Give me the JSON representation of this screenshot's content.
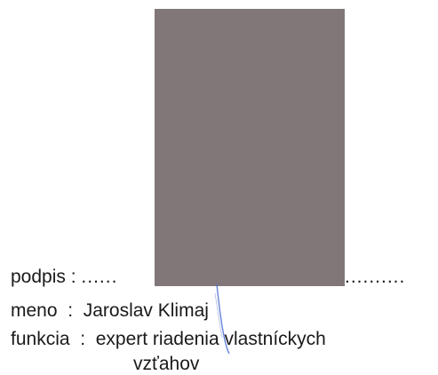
{
  "signature_block": {
    "signature_label": "podpis",
    "signature_sep": " : ",
    "signature_dots_left": "......",
    "signature_dots_right": "..........",
    "name_label": "meno",
    "name_sep": "  :  ",
    "name_value": "Jaroslav Klimaj",
    "function_label": "funkcia",
    "function_sep": "  :  ",
    "function_value_line1": "expert riadenia vlastníckych",
    "function_value_line2": "vzťahov"
  },
  "colors": {
    "redaction": "#817779",
    "text": "#1a1a1a",
    "pen_stroke": "#4a6fd0"
  }
}
